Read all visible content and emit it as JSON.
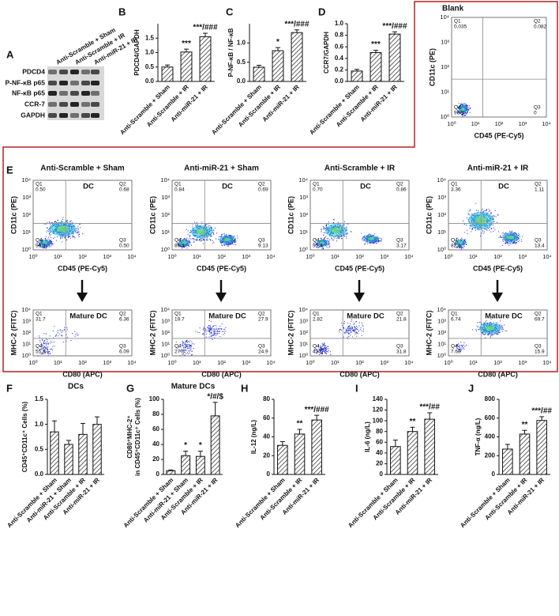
{
  "blot": {
    "panel": "A",
    "rows": [
      "PDCD4",
      "P-NF-κB p65",
      "NF-κB p65",
      "CCR-7",
      "GAPDH"
    ],
    "columns": [
      "Anti-Scramble + Sham",
      "Anti-Scramble + IR",
      "Anti-miR-21 + IR"
    ]
  },
  "flow_ticks": [
    "10⁰",
    "10¹",
    "10²",
    "10³",
    "10⁴"
  ],
  "quadrant_names": [
    "Q1",
    "Q2",
    "Q3",
    "Q4"
  ],
  "chart_data": [
    {
      "type": "bar",
      "panel": "B",
      "y_label": "PDCD4/GAPDH",
      "categories": [
        "Anti-Scramble + Sham",
        "Anti-Scramble + IR",
        "Anti-miR-21 + IR"
      ],
      "values": [
        0.5,
        1.02,
        1.55
      ],
      "errors": [
        0.07,
        0.1,
        0.12
      ],
      "annotations": [
        null,
        "***",
        "***/###"
      ],
      "color": "#ffffff",
      "ylim": [
        0,
        2
      ],
      "yticks": [
        {
          "value": 0,
          "label": "0.0"
        },
        {
          "value": 0.5,
          "label": "0.5"
        },
        {
          "value": 1,
          "label": "1.0"
        },
        {
          "value": 1.5,
          "label": "1.5"
        }
      ]
    },
    {
      "type": "bar",
      "panel": "C",
      "y_label": "P-NF-κB / NF-κB",
      "categories": [
        "Anti-Scramble + Sham",
        "Anti-Scramble + IR",
        "Anti-miR-21 + IR"
      ],
      "values": [
        0.37,
        0.8,
        1.27
      ],
      "errors": [
        0.05,
        0.08,
        0.07
      ],
      "annotations": [
        null,
        "*",
        "***/###"
      ],
      "color": "#ffffff",
      "ylim": [
        0,
        1.5
      ],
      "yticks": [
        {
          "value": 0,
          "label": "0.0"
        },
        {
          "value": 0.5,
          "label": "0.5"
        },
        {
          "value": 1,
          "label": "1.0"
        }
      ]
    },
    {
      "type": "bar",
      "panel": "D",
      "y_label": "CCR7/GAPDH",
      "categories": [
        "Anti-Scramble + Sham",
        "Anti-Scramble + IR",
        "Anti-miR-21 + IR"
      ],
      "values": [
        0.18,
        0.5,
        0.82
      ],
      "errors": [
        0.03,
        0.04,
        0.04
      ],
      "annotations": [
        null,
        "***",
        "***/###"
      ],
      "color": "#ffffff",
      "ylim": [
        0,
        1
      ],
      "yticks": [
        {
          "value": 0,
          "label": "0.0"
        },
        {
          "value": 0.2,
          "label": "0.2"
        },
        {
          "value": 0.4,
          "label": "0.4"
        },
        {
          "value": 0.6,
          "label": "0.6"
        },
        {
          "value": 0.8,
          "label": "0.8"
        },
        {
          "value": 1,
          "label": "1.0"
        }
      ]
    },
    {
      "type": "flow",
      "title": "Blank",
      "x_label": "CD45 (PE-Cy5)",
      "y_label": "CD11c (PE)",
      "quadrant_values": [
        "0.035",
        "0.082",
        "0",
        "99.9"
      ]
    },
    {
      "type": "flow",
      "panel": "E",
      "title": "Anti-Scramble + Sham",
      "gate": "DC",
      "x_label": "CD45 (PE-Cy5)",
      "y_label": "CD11c (PE)",
      "quadrant_values": [
        "0.50",
        "0.68",
        "0.50",
        "98.3"
      ]
    },
    {
      "type": "flow",
      "title": "Anti-miR-21 + Sham",
      "gate": "DC",
      "x_label": "CD45 (PE-Cy5)",
      "y_label": "CD11c (PE)",
      "quadrant_values": [
        "0.84",
        "0.69",
        "9.13",
        "89.3"
      ]
    },
    {
      "type": "flow",
      "title": "Anti-Scramble + IR",
      "gate": "DC",
      "x_label": "CD45 (PE-Cy5)",
      "y_label": "CD11c (PE)",
      "quadrant_values": [
        "0.70",
        "0.86",
        "3.17",
        "95.3"
      ]
    },
    {
      "type": "flow",
      "title": "Anti-miR-21 + IR",
      "gate": "DC",
      "x_label": "CD45 (PE-Cy5)",
      "y_label": "CD11c (PE)",
      "quadrant_values": [
        "3.36",
        "1.11",
        "13.4",
        "82.1"
      ]
    },
    {
      "type": "flow",
      "gate": "Mature DC",
      "x_label": "CD80 (APC)",
      "y_label": "MHC-2 (FITC)",
      "quadrant_values": [
        "31.7",
        "6.36",
        "6.09",
        "55.9"
      ]
    },
    {
      "type": "flow",
      "gate": "Mature DC",
      "x_label": "CD80 (APC)",
      "y_label": "MHC-2 (FITC)",
      "quadrant_values": [
        "19.7",
        "27.9",
        "24.9",
        "27.5"
      ]
    },
    {
      "type": "flow",
      "gate": "Mature DC",
      "x_label": "CD80 (APC)",
      "y_label": "MHC-2 (FITC)",
      "quadrant_values": [
        "2.82",
        "21.8",
        "31.8",
        "43.6"
      ]
    },
    {
      "type": "flow",
      "gate": "Mature DC",
      "x_label": "CD80 (APC)",
      "y_label": "MHC-2 (FITC)",
      "quadrant_values": [
        "6.74",
        "69.7",
        "15.9",
        "7.66"
      ]
    },
    {
      "type": "bar",
      "panel": "F",
      "title": "DCs",
      "y_label": "CD45⁺CD11c⁺ Cells (%)",
      "categories": [
        "Anti-Scramble + Sham",
        "Anti-miR-21 + Sham",
        "Anti-Scramble + IR",
        "Anti-miR-21 + IR"
      ],
      "values": [
        0.85,
        0.6,
        0.8,
        1.0
      ],
      "errors": [
        0.22,
        0.08,
        0.22,
        0.15
      ],
      "annotations": [
        null,
        null,
        null,
        null
      ],
      "color": "#ffffff",
      "ylim": [
        0,
        1.5
      ],
      "yticks": [
        {
          "value": 0,
          "label": "0.0"
        },
        {
          "value": 0.5,
          "label": "0.5"
        },
        {
          "value": 1,
          "label": "1.0"
        },
        {
          "value": 1.5,
          "label": "1.5"
        }
      ]
    },
    {
      "type": "bar",
      "panel": "G",
      "title": "Mature DCs",
      "y_label": [
        "CD80⁺MHC-2⁺",
        "in CD45⁺CD11c⁺ Cells (%)"
      ],
      "categories": [
        "Anti-Scramble + Sham",
        "Anti-miR-21 + Sham",
        "Anti-Scramble + IR",
        "Anti-miR-21 + IR"
      ],
      "values": [
        5,
        25,
        24,
        78
      ],
      "errors": [
        1,
        6,
        7,
        18
      ],
      "annotations": [
        null,
        "*",
        "*",
        "*/#/$"
      ],
      "color": "#ffffff",
      "ylim": [
        0,
        100
      ],
      "yticks": [
        0,
        20,
        40,
        60,
        80,
        100
      ]
    },
    {
      "type": "bar",
      "panel": "H",
      "y_label": "IL-12 (ng/L)",
      "categories": [
        "Anti-Scramble + Sham",
        "Anti-Scramble + IR",
        "Anti-miR-21 + IR"
      ],
      "values": [
        31,
        43,
        58
      ],
      "errors": [
        4,
        5,
        5
      ],
      "annotations": [
        null,
        "**",
        "***/###"
      ],
      "color": "#ffffff",
      "ylim": [
        0,
        80
      ],
      "yticks": [
        0,
        20,
        40,
        60,
        80
      ]
    },
    {
      "type": "bar",
      "panel": "I",
      "y_label": "IL-6 (ng/L)",
      "categories": [
        "Anti-Scramble + Sham",
        "Anti-Scramble + IR",
        "Anti-miR-21 + IR"
      ],
      "values": [
        52,
        80,
        103
      ],
      "errors": [
        12,
        8,
        12
      ],
      "annotations": [
        null,
        "**",
        "***/##"
      ],
      "color": "#ffffff",
      "ylim": [
        0,
        140
      ],
      "yticks": [
        0,
        20,
        40,
        60,
        80,
        100,
        120,
        140
      ]
    },
    {
      "type": "bar",
      "panel": "J",
      "y_label": "TNF-α (ng/L)",
      "categories": [
        "Anti-Scramble + Sham",
        "Anti-Scramble + IR",
        "Anti-miR-21 + IR"
      ],
      "values": [
        270,
        430,
        575
      ],
      "errors": [
        50,
        40,
        40
      ],
      "annotations": [
        null,
        "**",
        "***/##"
      ],
      "color": "#ffffff",
      "ylim": [
        0,
        800
      ],
      "yticks": [
        0,
        200,
        400,
        600,
        800
      ]
    }
  ]
}
